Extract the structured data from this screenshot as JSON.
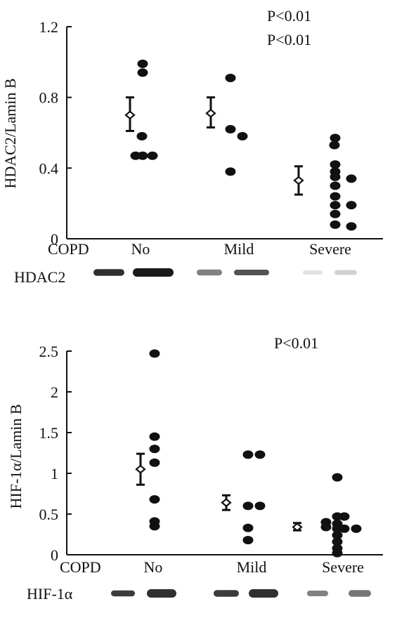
{
  "chart_data": [
    {
      "type": "scatter",
      "panel": "top",
      "ylabel": "HDAC2/Lamin B",
      "xlabel": "COPD",
      "categories": [
        "No",
        "Mild",
        "Severe"
      ],
      "ylim": [
        0,
        1.2
      ],
      "yticks": [
        0,
        0.4,
        0.8,
        1.2
      ],
      "ytick_labels": [
        "0",
        "0.4",
        "0.8",
        "1.2"
      ],
      "annotations": [
        "P<0.01",
        "P<0.01"
      ],
      "series": [
        {
          "category": "No",
          "points": [
            [
              0.98,
              0.99
            ],
            [
              0.98,
              0.94
            ],
            [
              0.97,
              0.58
            ],
            [
              0.88,
              0.47
            ],
            [
              0.98,
              0.47
            ],
            [
              1.12,
              0.47
            ]
          ],
          "mean": 0.7,
          "error": [
            0.61,
            0.8
          ]
        },
        {
          "category": "Mild",
          "points": [
            [
              0.98,
              0.91
            ],
            [
              0.98,
              0.62
            ],
            [
              1.15,
              0.58
            ],
            [
              0.98,
              0.38
            ]
          ],
          "mean": 0.71,
          "error": [
            0.63,
            0.8
          ]
        },
        {
          "category": "Severe",
          "points": [
            [
              0.97,
              0.57
            ],
            [
              0.96,
              0.53
            ],
            [
              0.97,
              0.42
            ],
            [
              0.97,
              0.38
            ],
            [
              0.97,
              0.35
            ],
            [
              1.2,
              0.34
            ],
            [
              0.97,
              0.3
            ],
            [
              0.97,
              0.24
            ],
            [
              0.97,
              0.19
            ],
            [
              1.2,
              0.19
            ],
            [
              0.97,
              0.14
            ],
            [
              0.97,
              0.08
            ],
            [
              1.2,
              0.07
            ]
          ],
          "mean": 0.33,
          "error": [
            0.25,
            0.41
          ]
        }
      ],
      "blot": {
        "label": "HDAC2",
        "bands": [
          [
            0.14,
            0.9
          ],
          [
            0.2,
            1.0
          ],
          [
            0.11,
            0.55
          ],
          [
            0.1,
            0.75
          ],
          [
            0.05,
            0.12
          ],
          [
            0.07,
            0.2
          ]
        ]
      }
    },
    {
      "type": "scatter",
      "panel": "bottom",
      "ylabel": "HIF-1α/Lamin B",
      "xlabel": "COPD",
      "categories": [
        "No",
        "Mild",
        "Severe"
      ],
      "ylim": [
        0,
        2.5
      ],
      "yticks": [
        0,
        0.5,
        1,
        1.5,
        2,
        2.5
      ],
      "ytick_labels": [
        "0",
        "0.5",
        "1",
        "1.5",
        "2",
        "2.5"
      ],
      "annotations": [
        "P<0.01"
      ],
      "series": [
        {
          "category": "No",
          "points": [
            [
              0.98,
              2.47
            ],
            [
              0.98,
              1.45
            ],
            [
              0.98,
              1.3
            ],
            [
              0.98,
              1.13
            ],
            [
              0.98,
              0.68
            ],
            [
              0.98,
              0.41
            ],
            [
              0.98,
              0.35
            ]
          ],
          "mean": 1.05,
          "error": [
            0.86,
            1.24
          ]
        },
        {
          "category": "Mild",
          "points": [
            [
              0.98,
              1.23
            ],
            [
              1.15,
              1.23
            ],
            [
              0.98,
              0.6
            ],
            [
              1.15,
              0.6
            ],
            [
              0.98,
              0.33
            ],
            [
              0.98,
              0.18
            ]
          ],
          "mean": 0.64,
          "error": [
            0.55,
            0.73
          ]
        },
        {
          "category": "Severe",
          "points": [
            [
              0.98,
              0.95
            ],
            [
              0.98,
              0.47
            ],
            [
              1.08,
              0.47
            ],
            [
              0.82,
              0.4
            ],
            [
              0.98,
              0.38
            ],
            [
              0.82,
              0.34
            ],
            [
              0.98,
              0.32
            ],
            [
              1.08,
              0.32
            ],
            [
              1.25,
              0.32
            ],
            [
              0.98,
              0.24
            ],
            [
              0.98,
              0.16
            ],
            [
              0.98,
              0.08
            ],
            [
              0.98,
              0.02
            ]
          ],
          "mean": 0.34,
          "error": [
            0.3,
            0.39
          ]
        }
      ],
      "blot": {
        "label": "HIF-1α",
        "bands": [
          [
            0.11,
            0.85
          ],
          [
            0.2,
            0.9
          ],
          [
            0.14,
            0.85
          ],
          [
            0.2,
            0.9
          ],
          [
            0.1,
            0.55
          ],
          [
            0.14,
            0.6
          ]
        ]
      }
    }
  ]
}
